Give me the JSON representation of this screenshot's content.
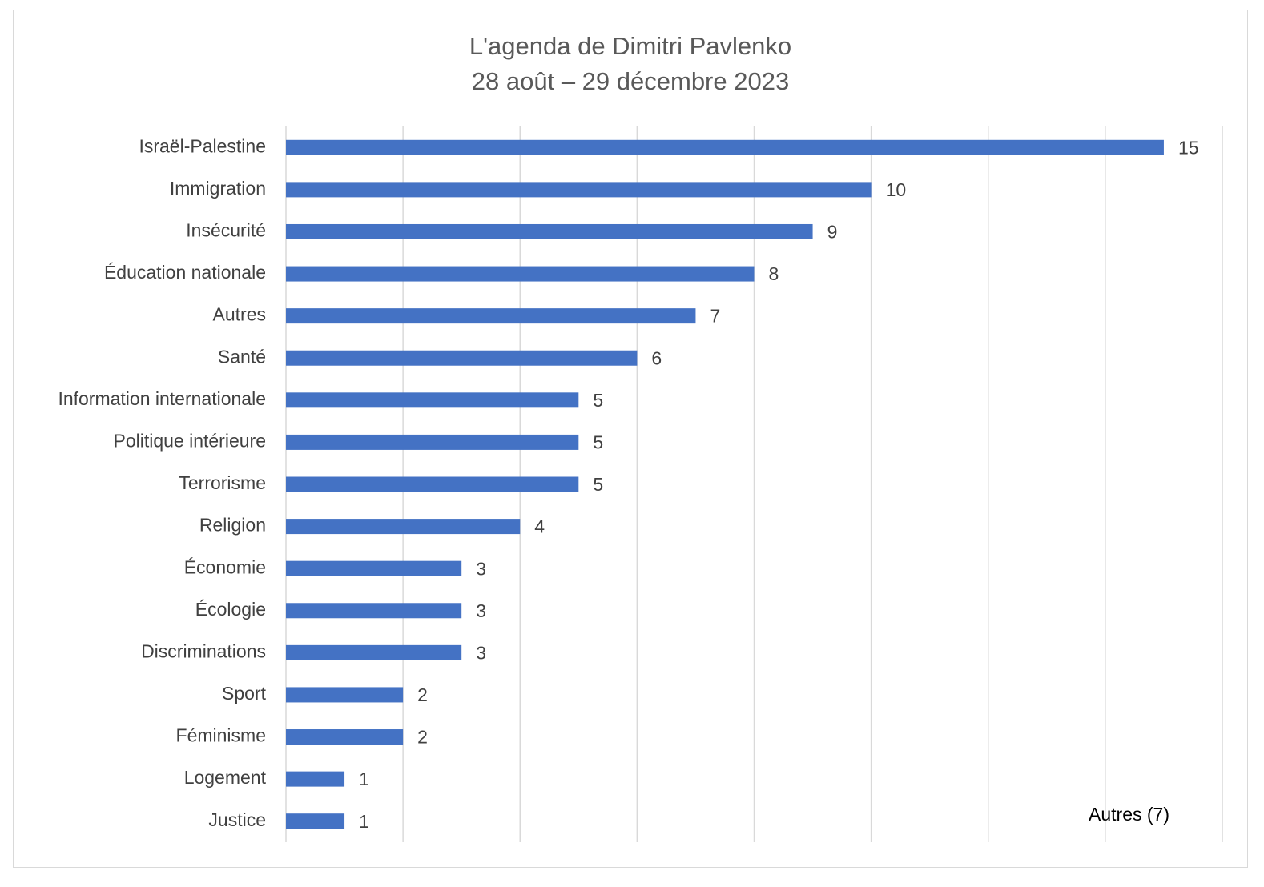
{
  "chart_data": {
    "type": "bar",
    "orientation": "horizontal",
    "title": "L'agenda de Dimitri Pavlenko",
    "subtitle": "28 août – 29 décembre 2023",
    "categories": [
      "Israël-Palestine",
      "Immigration",
      "Insécurité",
      "Éducation nationale",
      "Autres",
      "Santé",
      "Information internationale",
      "Politique intérieure",
      "Terrorisme",
      "Religion",
      "Économie",
      "Écologie",
      "Discriminations",
      "Sport",
      "Féminisme",
      "Logement",
      "Justice"
    ],
    "values": [
      15,
      10,
      9,
      8,
      7,
      6,
      5,
      5,
      5,
      4,
      3,
      3,
      3,
      2,
      2,
      1,
      1
    ],
    "xlim": [
      0,
      16
    ],
    "grid": true,
    "data_labels": true,
    "bar_color": "#4472C4",
    "annotation": "Autres (7)"
  }
}
